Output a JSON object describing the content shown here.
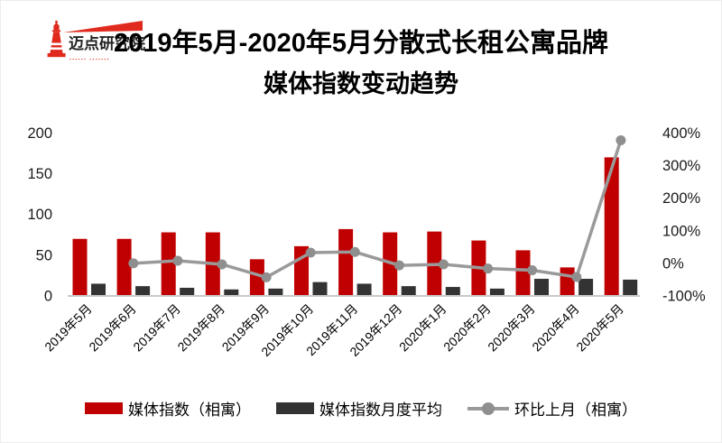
{
  "logo": {
    "name": "迈点研究院",
    "tagline": "▪▪▪▪▪▪ ▪▪▪▪▪▪▪",
    "color": "#e02a1d"
  },
  "title": {
    "line1": "2019年5月-2020年5月分散式长租公寓品牌",
    "line2": "媒体指数变动趋势"
  },
  "chart_data": {
    "type": "combo",
    "categories": [
      "2019年5月",
      "2019年6月",
      "2019年7月",
      "2019年8月",
      "2019年9月",
      "2019年10月",
      "2019年11月",
      "2019年12月",
      "2020年1月",
      "2020年2月",
      "2020年3月",
      "2020年4月",
      "2020年5月"
    ],
    "series": [
      {
        "name": "媒体指数（相寓）",
        "type": "bar",
        "axis": "left",
        "color": "#c00000",
        "values": [
          70,
          70,
          78,
          78,
          45,
          61,
          82,
          78,
          79,
          68,
          56,
          35,
          170
        ]
      },
      {
        "name": "媒体指数月度平均",
        "type": "bar",
        "axis": "left",
        "color": "#333333",
        "values": [
          15,
          12,
          10,
          8,
          9,
          17,
          15,
          12,
          11,
          9,
          21,
          21,
          20
        ]
      },
      {
        "name": "环比上月（相寓）",
        "type": "line",
        "axis": "right",
        "color": "#9a9a9a",
        "marker_color": "#8f8f8f",
        "values": [
          null,
          0,
          8,
          -3,
          -43,
          33,
          35,
          -6,
          -3,
          -16,
          -21,
          -42,
          378
        ]
      }
    ],
    "left_axis": {
      "min": 0,
      "max": 200,
      "tick_values": [
        0,
        50,
        100,
        150,
        200
      ],
      "tick_labels": [
        "0",
        "50",
        "100",
        "150",
        "200"
      ]
    },
    "right_axis": {
      "min": -100,
      "max": 400,
      "tick_values": [
        -100,
        0,
        100,
        200,
        300,
        400
      ],
      "tick_labels": [
        "-100%",
        "0%",
        "100%",
        "200%",
        "300%",
        "400%"
      ]
    },
    "grid": false,
    "legend_position": "bottom"
  }
}
